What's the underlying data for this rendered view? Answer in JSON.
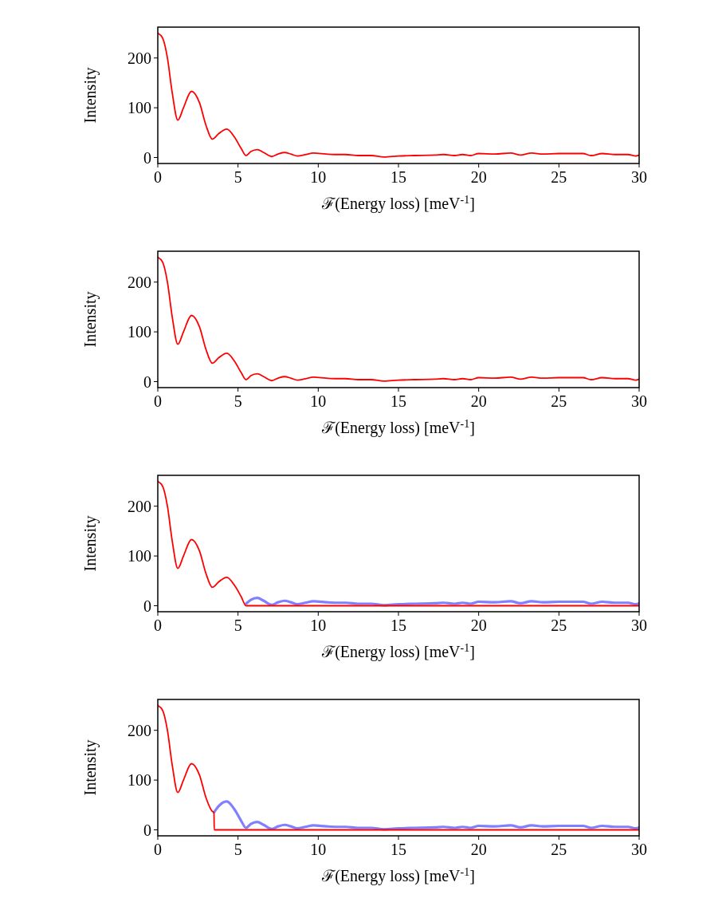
{
  "chart_data": [
    {
      "type": "line",
      "xlabel": "ℱ(Energy loss) [meV$^{-1}$]",
      "ylabel": "Intensity",
      "xlim": [
        0,
        30
      ],
      "ylim": [
        -12,
        262
      ],
      "xticks": [
        0,
        5,
        10,
        15,
        20,
        25,
        30
      ],
      "yticks": [
        0,
        100,
        200
      ],
      "series": [
        {
          "color": "#ff0000",
          "x": [
            0,
            0.3,
            0.6,
            0.9,
            1.25,
            1.6,
            2.1,
            2.6,
            3.0,
            3.4,
            3.8,
            4.3,
            4.8,
            5.2,
            5.5,
            5.8,
            6.2,
            6.6,
            7.1,
            7.5,
            7.9,
            8.3,
            8.7,
            9.2,
            9.7,
            10.5,
            11.2,
            11.7,
            12.5,
            13.3,
            14.1,
            15,
            16,
            17.3,
            17.8,
            18.5,
            19,
            19.5,
            20,
            21,
            22,
            22.6,
            23.3,
            24,
            25,
            26.5,
            27,
            27.7,
            28.5,
            29.3,
            29.8,
            30
          ],
          "values": [
            250,
            240,
            200,
            130,
            75,
            100,
            133,
            110,
            65,
            37,
            48,
            57,
            40,
            18,
            4,
            12,
            16,
            10,
            2,
            7,
            10,
            7,
            3,
            6,
            9,
            7,
            6,
            6,
            4,
            4,
            1,
            3,
            4,
            5,
            6,
            4,
            6,
            4,
            8,
            7,
            9,
            5,
            9,
            7,
            8,
            8,
            4,
            8,
            6,
            6,
            3,
            5
          ]
        }
      ]
    },
    {
      "type": "line",
      "xlabel": "ℱ(Energy loss) [meV$^{-1}$]",
      "ylabel": "Intensity",
      "xlim": [
        0,
        30
      ],
      "ylim": [
        -12,
        262
      ],
      "xticks": [
        0,
        5,
        10,
        15,
        20,
        25,
        30
      ],
      "yticks": [
        0,
        100,
        200
      ],
      "series": [
        {
          "color": "#ff0000",
          "x": [
            0,
            0.3,
            0.6,
            0.9,
            1.25,
            1.6,
            2.1,
            2.6,
            3.0,
            3.4,
            3.8,
            4.3,
            4.8,
            5.2,
            5.5,
            5.8,
            6.2,
            6.6,
            7.1,
            7.5,
            7.9,
            8.3,
            8.7,
            9.2,
            9.7,
            10.5,
            11.2,
            11.7,
            12.5,
            13.3,
            14.1,
            15,
            16,
            17.3,
            17.8,
            18.5,
            19,
            19.5,
            20,
            21,
            22,
            22.6,
            23.3,
            24,
            25,
            26.5,
            27,
            27.7,
            28.5,
            29.3,
            29.8,
            30
          ],
          "values": [
            250,
            240,
            200,
            130,
            75,
            100,
            133,
            110,
            65,
            37,
            48,
            57,
            40,
            18,
            4,
            12,
            16,
            10,
            2,
            7,
            10,
            7,
            3,
            6,
            9,
            7,
            6,
            6,
            4,
            4,
            1,
            3,
            4,
            5,
            6,
            4,
            6,
            4,
            8,
            7,
            9,
            5,
            9,
            7,
            8,
            8,
            4,
            8,
            6,
            6,
            3,
            5
          ]
        }
      ]
    },
    {
      "type": "line",
      "xlabel": "ℱ(Energy loss) [meV$^{-1}$]",
      "ylabel": "Intensity",
      "xlim": [
        0,
        30
      ],
      "ylim": [
        -12,
        262
      ],
      "xticks": [
        0,
        5,
        10,
        15,
        20,
        25,
        30
      ],
      "yticks": [
        0,
        100,
        200
      ],
      "series": [
        {
          "color": "#8080ff",
          "x": [
            5.5,
            5.8,
            6.2,
            6.6,
            7.1,
            7.5,
            7.9,
            8.3,
            8.7,
            9.2,
            9.7,
            10.5,
            11.2,
            11.7,
            12.5,
            13.3,
            14.1,
            15,
            16,
            17.3,
            17.8,
            18.5,
            19,
            19.5,
            20,
            21,
            22,
            22.6,
            23.3,
            24,
            25,
            26.5,
            27,
            27.7,
            28.5,
            29.3,
            29.8,
            30
          ],
          "values": [
            4,
            12,
            16,
            10,
            2,
            7,
            10,
            7,
            3,
            6,
            9,
            7,
            6,
            6,
            4,
            4,
            1,
            3,
            4,
            5,
            6,
            4,
            6,
            4,
            8,
            7,
            9,
            5,
            9,
            7,
            8,
            8,
            4,
            8,
            6,
            6,
            3,
            5
          ]
        },
        {
          "color": "#ff0000",
          "x": [
            0,
            0.3,
            0.6,
            0.9,
            1.25,
            1.6,
            2.1,
            2.6,
            3.0,
            3.4,
            3.8,
            4.3,
            4.8,
            5.2,
            5.5,
            30
          ],
          "values": [
            250,
            240,
            200,
            130,
            75,
            100,
            133,
            110,
            65,
            37,
            48,
            57,
            40,
            18,
            0,
            0
          ]
        }
      ]
    },
    {
      "type": "line",
      "xlabel": "ℱ(Energy loss) [meV$^{-1}$]",
      "ylabel": "Intensity",
      "xlim": [
        0,
        30
      ],
      "ylim": [
        -12,
        262
      ],
      "xticks": [
        0,
        5,
        10,
        15,
        20,
        25,
        30
      ],
      "yticks": [
        0,
        100,
        200
      ],
      "series": [
        {
          "color": "#8080ff",
          "x": [
            3.5,
            3.8,
            4.3,
            4.8,
            5.2,
            5.5,
            5.8,
            6.2,
            6.6,
            7.1,
            7.5,
            7.9,
            8.3,
            8.7,
            9.2,
            9.7,
            10.5,
            11.2,
            11.7,
            12.5,
            13.3,
            14.1,
            15,
            16,
            17.3,
            17.8,
            18.5,
            19,
            19.5,
            20,
            21,
            22,
            22.6,
            23.3,
            24,
            25,
            26.5,
            27,
            27.7,
            28.5,
            29.3,
            29.8,
            30
          ],
          "values": [
            35,
            48,
            57,
            40,
            18,
            4,
            12,
            16,
            10,
            2,
            7,
            10,
            7,
            3,
            6,
            9,
            7,
            6,
            6,
            4,
            4,
            1,
            3,
            4,
            5,
            6,
            4,
            6,
            4,
            8,
            7,
            9,
            5,
            9,
            7,
            8,
            8,
            4,
            8,
            6,
            6,
            3,
            5
          ]
        },
        {
          "color": "#ff0000",
          "x": [
            0,
            0.3,
            0.6,
            0.9,
            1.25,
            1.6,
            2.1,
            2.6,
            3.0,
            3.4,
            3.5,
            3.52,
            30
          ],
          "values": [
            250,
            240,
            200,
            130,
            75,
            100,
            133,
            110,
            65,
            37,
            35,
            0,
            0
          ]
        }
      ]
    }
  ]
}
